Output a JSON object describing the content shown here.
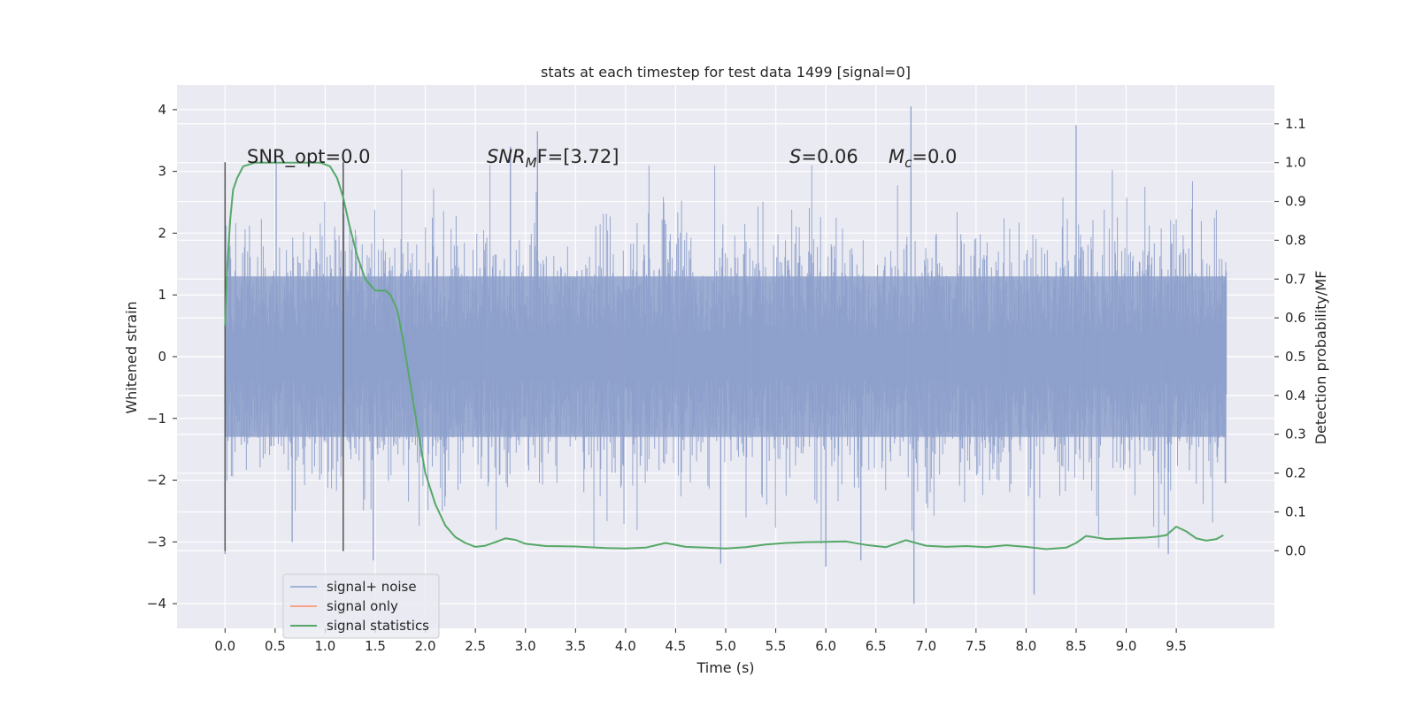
{
  "chart_data": {
    "type": "line",
    "title": "stats at each timestep for test data 1499 [signal=0]",
    "xlabel": "Time (s)",
    "ylabel_left": "Whitened strain",
    "ylabel_right": "Detection probability/MF",
    "xlim": [
      -0.48,
      10.48
    ],
    "ylim_left": [
      -4.4,
      4.4
    ],
    "ylim_right": [
      -0.2,
      1.2
    ],
    "x_ticks": [
      0.0,
      0.5,
      1.0,
      1.5,
      2.0,
      2.5,
      3.0,
      3.5,
      4.0,
      4.5,
      5.0,
      5.5,
      6.0,
      6.5,
      7.0,
      7.5,
      8.0,
      8.5,
      9.0,
      9.5
    ],
    "x_tick_labels": [
      "0.0",
      "0.5",
      "1.0",
      "1.5",
      "2.0",
      "2.5",
      "3.0",
      "3.5",
      "4.0",
      "4.5",
      "5.0",
      "5.5",
      "6.0",
      "6.5",
      "7.0",
      "7.5",
      "8.0",
      "8.5",
      "9.0",
      "9.5"
    ],
    "y_left_ticks": [
      4,
      3,
      2,
      1,
      0,
      -1,
      -2,
      -3,
      -4
    ],
    "y_left_tick_labels": [
      "4",
      "3",
      "2",
      "1",
      "0",
      "−1",
      "−2",
      "−3",
      "−4"
    ],
    "y_right_ticks": [
      1.1,
      1.0,
      0.9,
      0.8,
      0.7,
      0.6,
      0.5,
      0.4,
      0.3,
      0.2,
      0.1,
      0.0
    ],
    "y_right_tick_labels": [
      "1.1",
      "1.0",
      "0.9",
      "0.8",
      "0.7",
      "0.6",
      "0.5",
      "0.4",
      "0.3",
      "0.2",
      "0.1",
      "0.0"
    ],
    "grid": true,
    "legend_location": "lower-left",
    "vertical_markers": [
      0.0,
      1.18
    ],
    "series": [
      {
        "name": "signal+ noise",
        "axis": "left",
        "color": "#8da0cb",
        "kind": "noise",
        "x_range": [
          0.0,
          10.0
        ],
        "band": [
          -1.3,
          1.3
        ],
        "peaks": [
          {
            "x": 0.0,
            "y": -3.2
          },
          {
            "x": 0.51,
            "y": 3.2
          },
          {
            "x": 0.67,
            "y": -3.0
          },
          {
            "x": 1.48,
            "y": -3.3
          },
          {
            "x": 2.85,
            "y": 3.4
          },
          {
            "x": 3.12,
            "y": 3.65
          },
          {
            "x": 4.38,
            "y": 2.5
          },
          {
            "x": 4.95,
            "y": -3.35
          },
          {
            "x": 6.0,
            "y": -3.4
          },
          {
            "x": 6.35,
            "y": -3.3
          },
          {
            "x": 6.85,
            "y": 4.05
          },
          {
            "x": 6.88,
            "y": -4.0
          },
          {
            "x": 8.08,
            "y": -3.85
          },
          {
            "x": 8.5,
            "y": 3.75
          },
          {
            "x": 9.42,
            "y": -3.2
          }
        ]
      },
      {
        "name": "signal only",
        "axis": "left",
        "color": "#fc8d62",
        "x": [],
        "y": []
      },
      {
        "name": "signal statistics",
        "axis": "right",
        "color": "#55a868",
        "x": [
          0.0,
          0.02,
          0.05,
          0.08,
          0.12,
          0.18,
          0.3,
          0.5,
          0.7,
          0.85,
          0.95,
          1.05,
          1.12,
          1.18,
          1.24,
          1.32,
          1.4,
          1.5,
          1.6,
          1.65,
          1.72,
          1.78,
          1.85,
          1.92,
          2.0,
          2.1,
          2.2,
          2.3,
          2.4,
          2.5,
          2.6,
          2.7,
          2.8,
          2.9,
          3.0,
          3.2,
          3.5,
          3.8,
          4.0,
          4.2,
          4.4,
          4.6,
          4.8,
          5.0,
          5.2,
          5.4,
          5.6,
          5.8,
          6.0,
          6.2,
          6.4,
          6.6,
          6.8,
          7.0,
          7.2,
          7.4,
          7.6,
          7.8,
          8.0,
          8.2,
          8.4,
          8.5,
          8.6,
          8.7,
          8.8,
          9.0,
          9.2,
          9.3,
          9.4,
          9.5,
          9.6,
          9.7,
          9.8,
          9.9,
          9.97
        ],
        "y": [
          0.58,
          0.72,
          0.85,
          0.93,
          0.96,
          0.99,
          1.0,
          1.0,
          1.0,
          1.0,
          1.0,
          0.99,
          0.96,
          0.91,
          0.84,
          0.76,
          0.7,
          0.67,
          0.67,
          0.66,
          0.62,
          0.54,
          0.43,
          0.32,
          0.2,
          0.12,
          0.065,
          0.035,
          0.02,
          0.01,
          0.013,
          0.022,
          0.032,
          0.028,
          0.018,
          0.012,
          0.011,
          0.007,
          0.006,
          0.008,
          0.02,
          0.01,
          0.008,
          0.006,
          0.009,
          0.016,
          0.02,
          0.022,
          0.023,
          0.024,
          0.015,
          0.009,
          0.027,
          0.013,
          0.01,
          0.012,
          0.009,
          0.014,
          0.01,
          0.004,
          0.008,
          0.02,
          0.038,
          0.034,
          0.03,
          0.032,
          0.034,
          0.036,
          0.04,
          0.062,
          0.05,
          0.032,
          0.026,
          0.03,
          0.04
        ]
      }
    ],
    "annotations": {
      "snr_opt": "SNR_opt=0.0",
      "snr_mf_symbol": "SNR",
      "snr_mf_subscript": "M",
      "snr_mf_rest": "F=[3.72]",
      "s_symbol": "S",
      "s_value": "=0.06",
      "mc_symbol": "M",
      "mc_subscript": "c",
      "mc_value": "=0.0"
    },
    "colors": {
      "axes_bg": "#eaeaf2",
      "grid": "#ffffff",
      "marker": "#555555"
    }
  }
}
